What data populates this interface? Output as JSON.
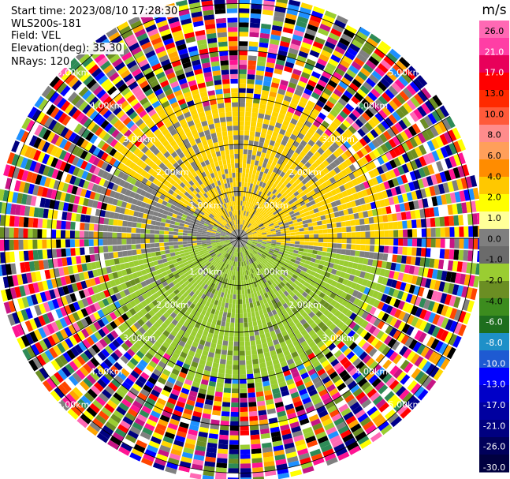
{
  "header": {
    "start_time": "Start time: 2023/08/10 17:28:30",
    "instrument": "WLS200s-181",
    "field": "Field: VEL",
    "elevation": "Elevation(deg): 35.30",
    "nrays": "NRays: 120"
  },
  "chart_data": {
    "type": "heatmap",
    "projection": "polar-ppi",
    "field": "VEL",
    "n_rays": 120,
    "range_rings": [
      {
        "label": "1.00km",
        "km": 1
      },
      {
        "label": "2.00km",
        "km": 2
      },
      {
        "label": "3.00km",
        "km": 3
      },
      {
        "label": "4.00km",
        "km": 4
      },
      {
        "label": "5.00km",
        "km": 5
      }
    ],
    "ring_label_bearings_deg": [
      45,
      135,
      225,
      315
    ],
    "spoke_bearings_deg": [
      0,
      30,
      60,
      90,
      120,
      150,
      180,
      210,
      240,
      270,
      300,
      330
    ],
    "max_range_km": 5.2,
    "features": [
      {
        "name": "positive-velocity-region",
        "bearing_range_deg": [
          300,
          90
        ],
        "range_km": [
          0.3,
          3.4
        ],
        "color": "#ffd500"
      },
      {
        "name": "negative-velocity-region",
        "bearing_range_deg": [
          100,
          260
        ],
        "range_km": [
          0.3,
          3.4
        ],
        "color": "#9acd32"
      },
      {
        "name": "near-zero-region",
        "bearing_range_deg": [
          0,
          360
        ],
        "range_km": [
          0.2,
          3.4
        ],
        "color": "#7f7f7f"
      }
    ],
    "colorbar": {
      "unit": "m/s",
      "min": -30.0,
      "max": 30.0,
      "labels": [
        "26.0",
        "21.0",
        "17.0",
        "13.0",
        "10.0",
        "8.0",
        "6.0",
        "4.0",
        "2.0",
        "1.0",
        "0.0",
        "-1.0",
        "-2.0",
        "-4.0",
        "-6.0",
        "-8.0",
        "-10.0",
        "-13.0",
        "-17.0",
        "-21.0",
        "-26.0",
        "-30.0"
      ],
      "colors": [
        "#ff69b4",
        "#ff3ea5",
        "#e8005a",
        "#ff0000",
        "#ff2a00",
        "#ff5a3a",
        "#ff8c8c",
        "#ff9f5a",
        "#ff8c00",
        "#ffc800",
        "#ffff00",
        "#ffff99",
        "#7f7f7f",
        "#6b6b6b",
        "#9acd32",
        "#6b8e23",
        "#3c8c1e",
        "#1e6e1e",
        "#1e90c8",
        "#1e5ad2",
        "#0000ff",
        "#0000c8",
        "#0000a0",
        "#000080",
        "#00005a",
        "#000040"
      ]
    }
  }
}
